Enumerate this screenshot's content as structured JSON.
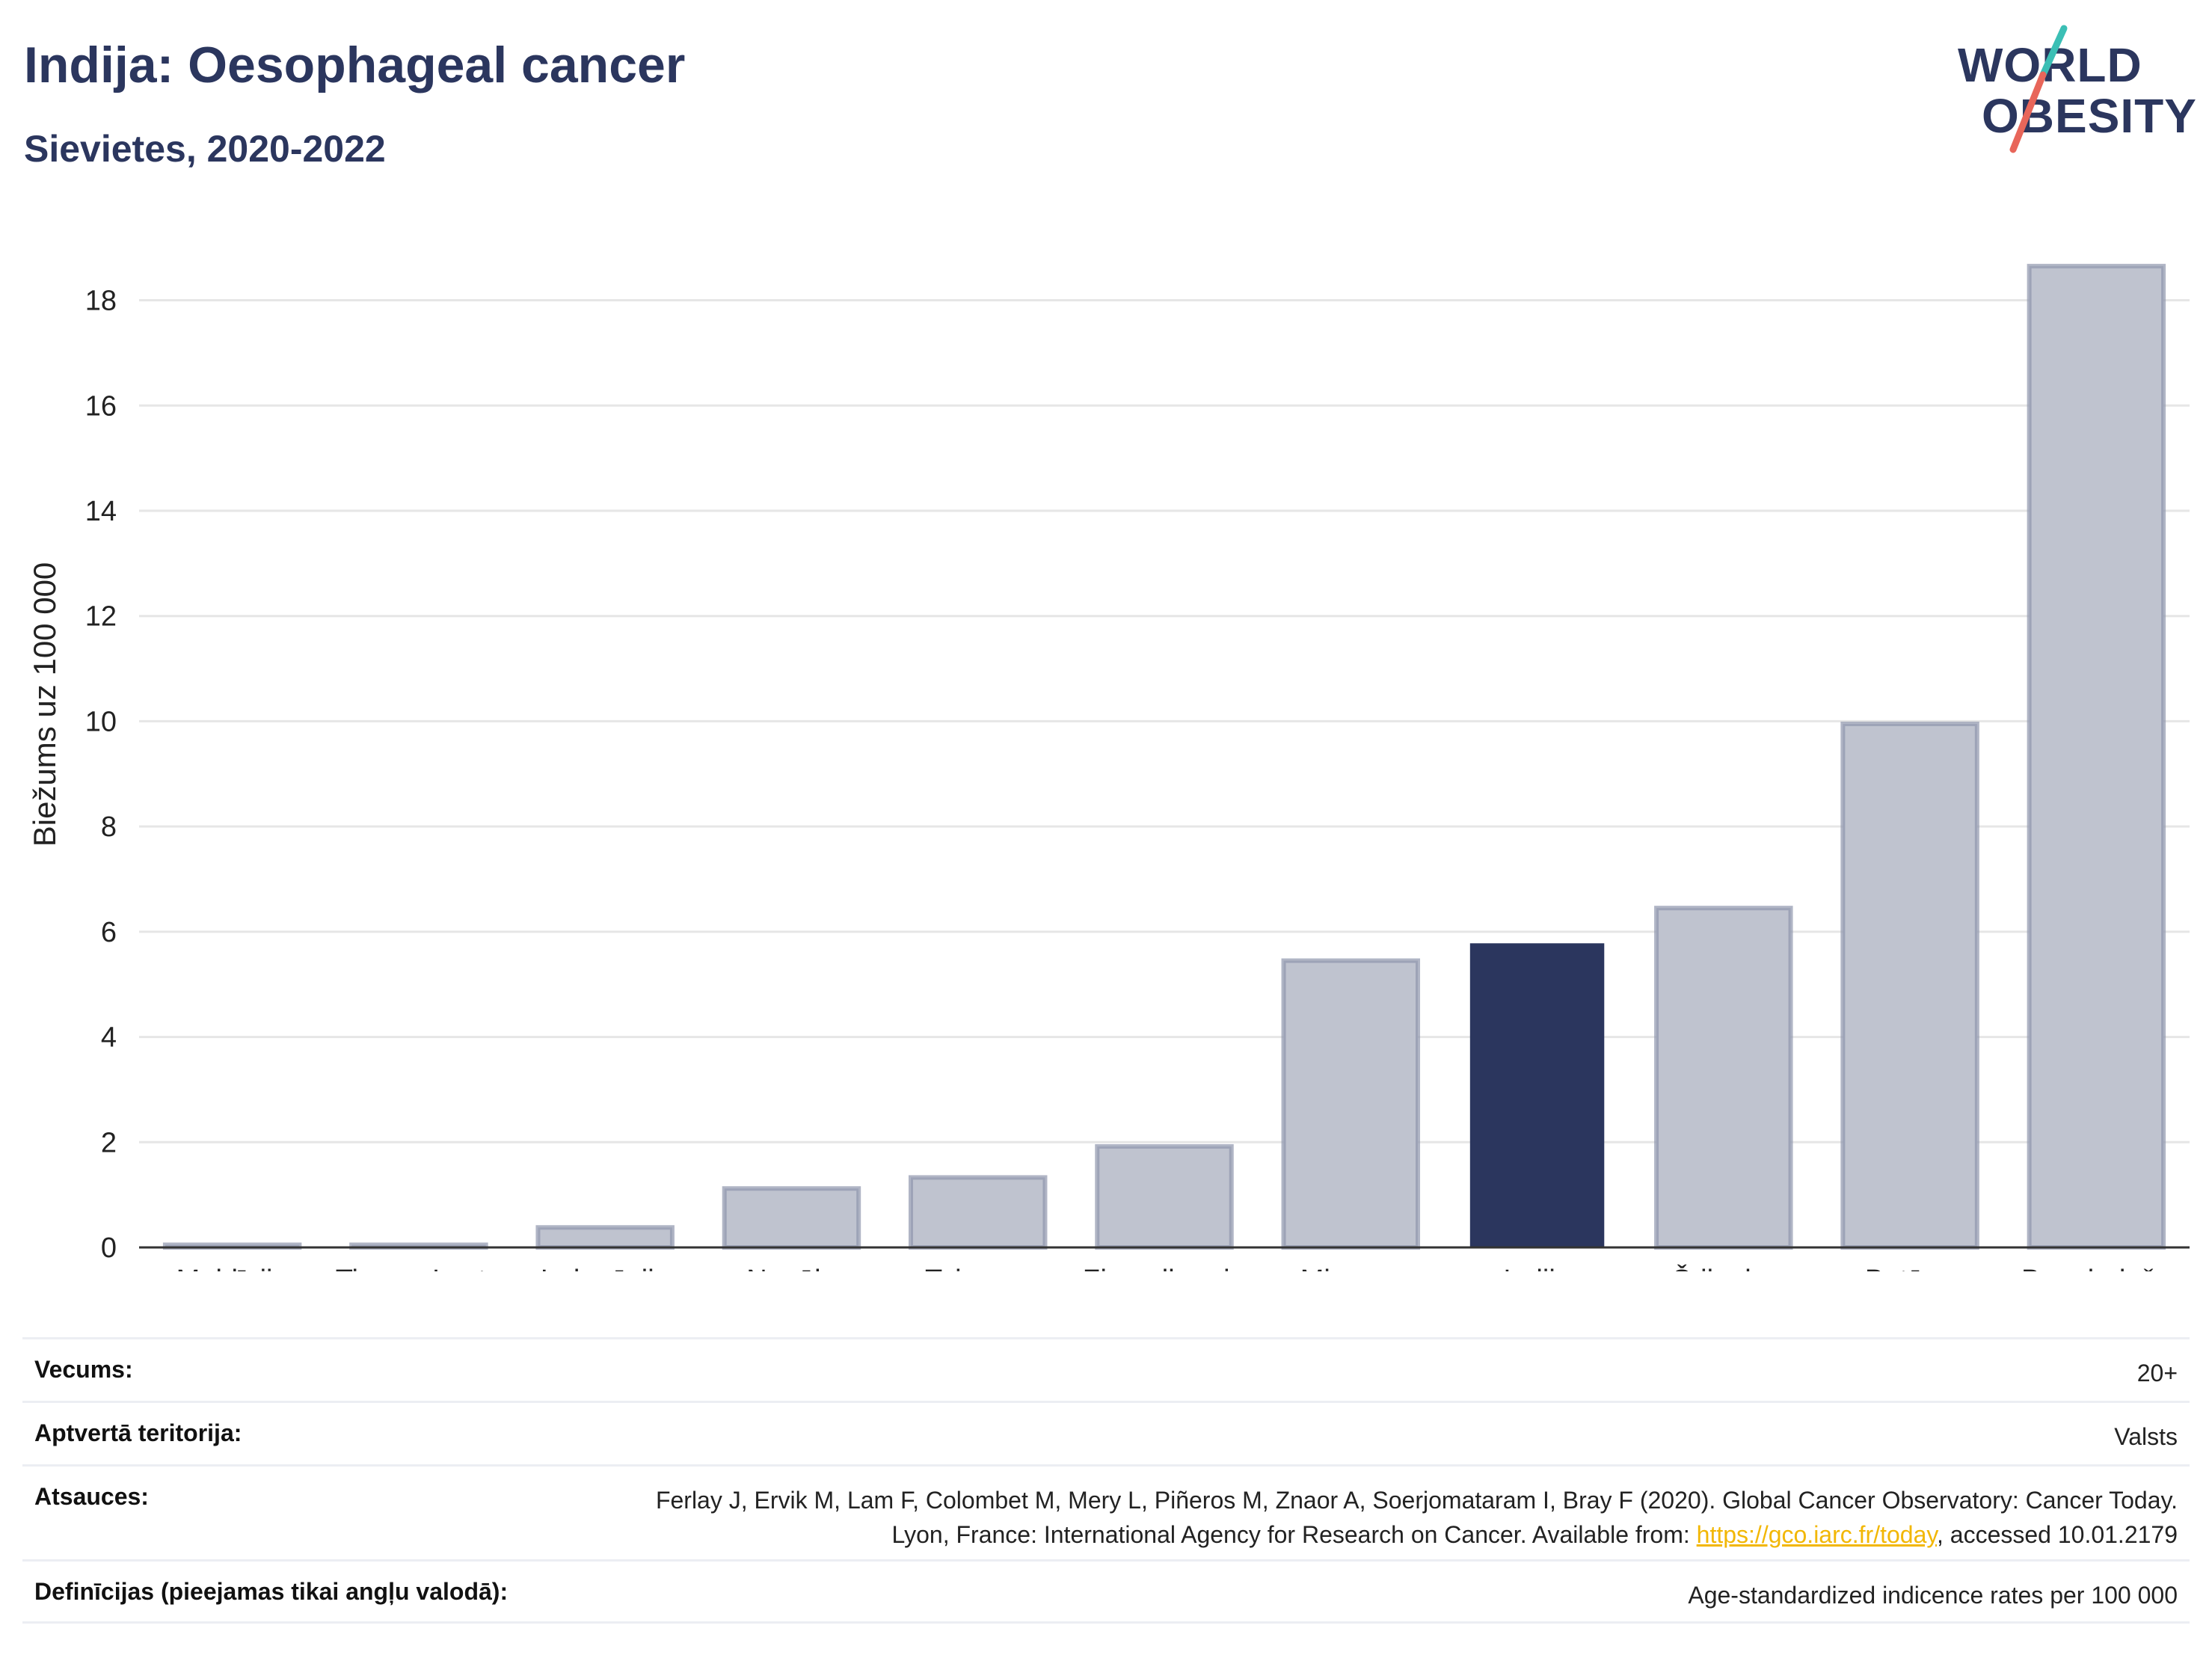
{
  "header": {
    "title": "Indija: Oesophageal cancer",
    "subtitle": "Sievietes, 2020-2022"
  },
  "logo": {
    "line1": "WORLD",
    "line2": "OBESITY",
    "accent_teal": "#3bbfb5",
    "accent_red": "#e8665a"
  },
  "colors": {
    "highlight": "#2b365e",
    "other_bar_fill": "#bfc3cf",
    "other_bar_stroke": "#8f96ad",
    "grid": "#e6e6e6"
  },
  "chart_data": {
    "type": "bar",
    "categories": [
      "Maldīvija",
      "Timora-Leste",
      "Indonēzija",
      "Nepāla",
      "Taizeme",
      "Ziemeļkoreja",
      "Mjanma",
      "Indija",
      "Šrilanka",
      "Butāna",
      "Bangladeša"
    ],
    "values": [
      0.05,
      0.05,
      0.38,
      1.12,
      1.33,
      1.92,
      5.45,
      5.78,
      6.45,
      9.95,
      18.65
    ],
    "highlight": "Indija",
    "ylabel": "Biežums uz 100 000",
    "ylim": [
      0,
      19.5
    ],
    "yticks": [
      0,
      2,
      4,
      6,
      8,
      10,
      12,
      14,
      16,
      18
    ],
    "grid": true
  },
  "info": {
    "age_label": "Vecums:",
    "age_value": "20+",
    "coverage_label": "Aptvertā teritorija:",
    "coverage_value": "Valsts",
    "refs_label": "Atsauces:",
    "refs_text_1": "Ferlay J, Ervik M, Lam F, Colombet M, Mery L, Piñeros M, Znaor A, Soerjomataram I, Bray F (2020). Global Cancer Observatory: Cancer Today. Lyon, France: International Agency for Research on Cancer. Available from: ",
    "refs_link": "https://gco.iarc.fr/today",
    "refs_text_2": ", accessed 10.01.2179",
    "defs_label": "Definīcijas (pieejamas tikai angļu valodā):",
    "defs_value": "Age-standardized indicence rates per 100 000"
  }
}
